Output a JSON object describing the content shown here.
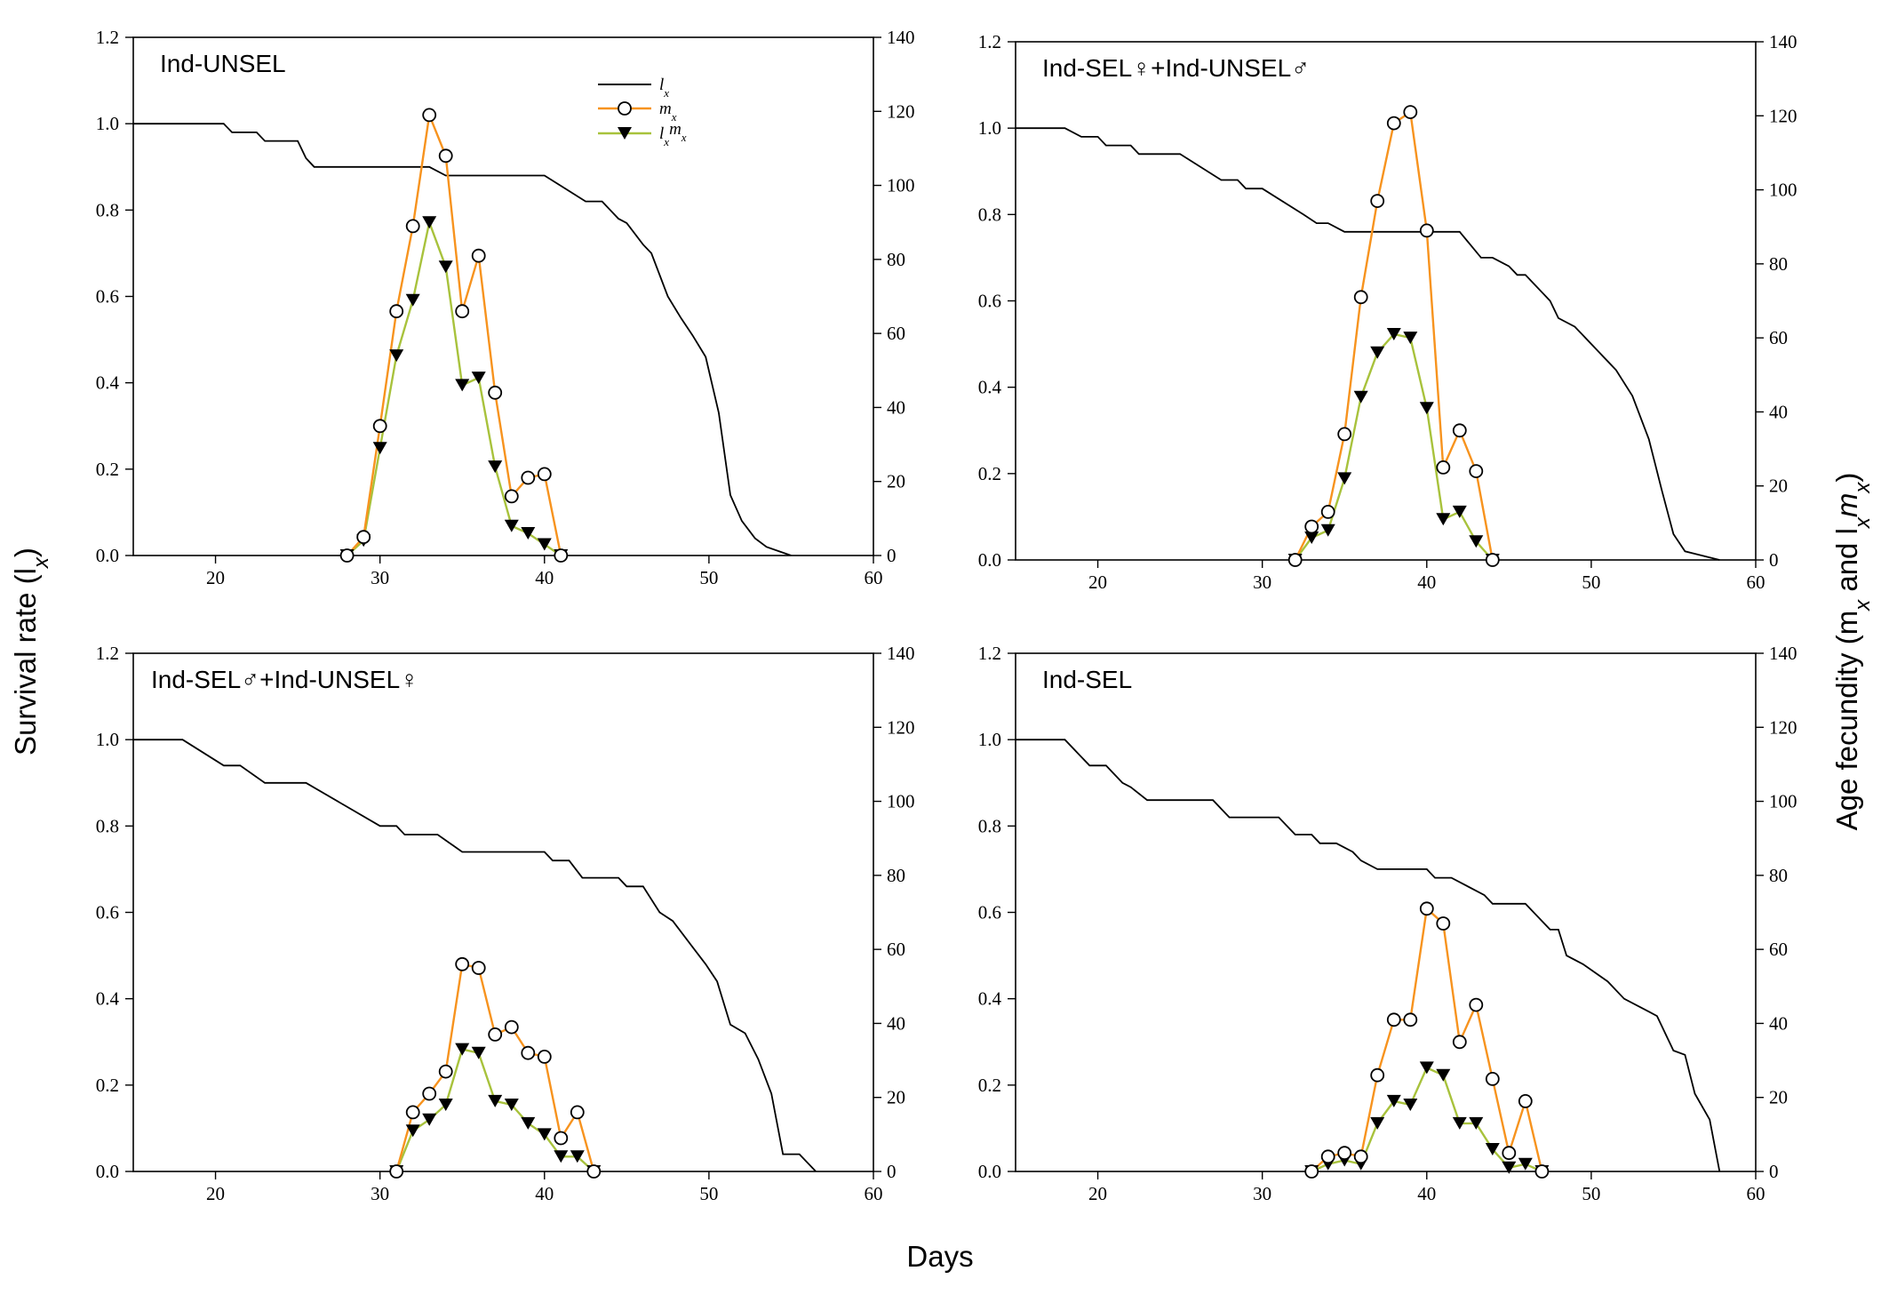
{
  "figure": {
    "ylabel_left": "Survival rate (l",
    "ylabel_left_sub": "x",
    "ylabel_left_close": ")",
    "ylabel_right": "Age fecundity (m",
    "ylabel_right_sub1": "x",
    "ylabel_right_mid": " and l",
    "ylabel_right_sub2": "x",
    "ylabel_right_m": "m",
    "ylabel_right_sub3": "x",
    "ylabel_right_close": ")",
    "xlabel": "Days"
  },
  "legend": {
    "lx_main": "l",
    "lx_sub": "x",
    "mx_main": "m",
    "mx_sub": "x",
    "lxmx_main1": "l",
    "lxmx_sub1": "x",
    "lxmx_main2": "m",
    "lxmx_sub2": "x"
  },
  "colors": {
    "lx": "#000000",
    "mx": "#f7931e",
    "lxmx": "#a8c23c"
  },
  "chart_data": [
    {
      "type": "line",
      "title": "Ind-UNSEL",
      "xlim": [
        15,
        60
      ],
      "ylim_left": [
        0,
        1.2
      ],
      "ylim_right": [
        0,
        140
      ],
      "xticks": [
        20,
        30,
        40,
        50,
        60
      ],
      "yticks_left": [
        "0.0",
        "0.2",
        "0.4",
        "0.6",
        "0.8",
        "1.0",
        "1.2"
      ],
      "yticks_right": [
        "0",
        "20",
        "40",
        "60",
        "80",
        "100",
        "120",
        "140"
      ],
      "lx": [
        [
          15,
          1.0
        ],
        [
          20.5,
          1.0
        ],
        [
          21,
          0.98
        ],
        [
          22.5,
          0.98
        ],
        [
          23,
          0.96
        ],
        [
          25,
          0.96
        ],
        [
          25.5,
          0.92
        ],
        [
          26,
          0.9
        ],
        [
          33,
          0.9
        ],
        [
          34,
          0.88
        ],
        [
          40,
          0.88
        ],
        [
          42.5,
          0.82
        ],
        [
          43.5,
          0.82
        ],
        [
          44.5,
          0.78
        ],
        [
          45,
          0.77
        ],
        [
          46,
          0.72
        ],
        [
          46.5,
          0.7
        ],
        [
          47.5,
          0.6
        ],
        [
          48.3,
          0.55
        ],
        [
          49,
          0.51
        ],
        [
          49.8,
          0.46
        ],
        [
          50.6,
          0.33
        ],
        [
          51.3,
          0.14
        ],
        [
          52,
          0.08
        ],
        [
          52.8,
          0.04
        ],
        [
          53.5,
          0.02
        ],
        [
          55,
          0.0
        ]
      ],
      "mx": [
        [
          28,
          0
        ],
        [
          29,
          5
        ],
        [
          30,
          35
        ],
        [
          31,
          66
        ],
        [
          32,
          89
        ],
        [
          33,
          119
        ],
        [
          34,
          108
        ],
        [
          35,
          66
        ],
        [
          36,
          81
        ],
        [
          37,
          44
        ],
        [
          38,
          16
        ],
        [
          39,
          21
        ],
        [
          40,
          22
        ],
        [
          41,
          0
        ]
      ],
      "lxmx": [
        [
          28,
          0
        ],
        [
          29,
          4
        ],
        [
          30,
          29
        ],
        [
          31,
          54
        ],
        [
          32,
          69
        ],
        [
          33,
          90
        ],
        [
          34,
          78
        ],
        [
          35,
          46
        ],
        [
          36,
          48
        ],
        [
          37,
          24
        ],
        [
          38,
          8
        ],
        [
          39,
          6
        ],
        [
          40,
          3
        ],
        [
          41,
          0
        ]
      ]
    },
    {
      "type": "line",
      "title": "Ind-SEL♀+Ind-UNSEL♂",
      "xlim": [
        15,
        60
      ],
      "ylim_left": [
        0,
        1.2
      ],
      "ylim_right": [
        0,
        140
      ],
      "xticks": [
        20,
        30,
        40,
        50,
        60
      ],
      "yticks_left": [
        "0.0",
        "0.2",
        "0.4",
        "0.6",
        "0.8",
        "1.0",
        "1.2"
      ],
      "yticks_right": [
        "0",
        "20",
        "40",
        "60",
        "80",
        "100",
        "120",
        "140"
      ],
      "lx": [
        [
          15,
          1.0
        ],
        [
          18,
          1.0
        ],
        [
          19,
          0.98
        ],
        [
          20,
          0.98
        ],
        [
          20.5,
          0.96
        ],
        [
          22,
          0.96
        ],
        [
          22.5,
          0.94
        ],
        [
          25,
          0.94
        ],
        [
          27.5,
          0.88
        ],
        [
          28.5,
          0.88
        ],
        [
          29,
          0.86
        ],
        [
          30,
          0.86
        ],
        [
          32.5,
          0.8
        ],
        [
          33.3,
          0.78
        ],
        [
          34,
          0.78
        ],
        [
          35,
          0.76
        ],
        [
          42,
          0.76
        ],
        [
          43.3,
          0.7
        ],
        [
          44,
          0.7
        ],
        [
          45,
          0.68
        ],
        [
          45.5,
          0.66
        ],
        [
          46,
          0.66
        ],
        [
          47.5,
          0.6
        ],
        [
          48,
          0.56
        ],
        [
          49,
          0.54
        ],
        [
          51.5,
          0.44
        ],
        [
          52.5,
          0.38
        ],
        [
          53.5,
          0.28
        ],
        [
          54.3,
          0.16
        ],
        [
          55,
          0.06
        ],
        [
          55.7,
          0.02
        ],
        [
          57.8,
          0.0
        ]
      ],
      "mx": [
        [
          32,
          0
        ],
        [
          33,
          9
        ],
        [
          34,
          13
        ],
        [
          35,
          34
        ],
        [
          36,
          71
        ],
        [
          37,
          97
        ],
        [
          38,
          118
        ],
        [
          39,
          121
        ],
        [
          40,
          89
        ],
        [
          41,
          25
        ],
        [
          42,
          35
        ],
        [
          43,
          24
        ],
        [
          44,
          0
        ]
      ],
      "lxmx": [
        [
          32,
          0
        ],
        [
          33,
          6
        ],
        [
          34,
          8
        ],
        [
          35,
          22
        ],
        [
          36,
          44
        ],
        [
          37,
          56
        ],
        [
          38,
          61
        ],
        [
          39,
          60
        ],
        [
          40,
          41
        ],
        [
          41,
          11
        ],
        [
          42,
          13
        ],
        [
          43,
          5
        ],
        [
          44,
          0
        ]
      ]
    },
    {
      "type": "line",
      "title": "Ind-SEL♂+Ind-UNSEL♀",
      "xlim": [
        15,
        60
      ],
      "ylim_left": [
        0,
        1.2
      ],
      "ylim_right": [
        0,
        140
      ],
      "xticks": [
        20,
        30,
        40,
        50,
        60
      ],
      "yticks_left": [
        "0.0",
        "0.2",
        "0.4",
        "0.6",
        "0.8",
        "1.0",
        "1.2"
      ],
      "yticks_right": [
        "0",
        "20",
        "40",
        "60",
        "80",
        "100",
        "120",
        "140"
      ],
      "lx": [
        [
          15,
          1.0
        ],
        [
          18,
          1.0
        ],
        [
          20.5,
          0.94
        ],
        [
          21.5,
          0.94
        ],
        [
          23,
          0.9
        ],
        [
          25.5,
          0.9
        ],
        [
          30,
          0.8
        ],
        [
          31,
          0.8
        ],
        [
          31.5,
          0.78
        ],
        [
          33.5,
          0.78
        ],
        [
          35,
          0.74
        ],
        [
          40,
          0.74
        ],
        [
          40.5,
          0.72
        ],
        [
          41.5,
          0.72
        ],
        [
          42.3,
          0.68
        ],
        [
          44.5,
          0.68
        ],
        [
          45,
          0.66
        ],
        [
          46,
          0.66
        ],
        [
          47,
          0.6
        ],
        [
          47.8,
          0.58
        ],
        [
          49,
          0.52
        ],
        [
          49.8,
          0.48
        ],
        [
          50.5,
          0.44
        ],
        [
          51.3,
          0.34
        ],
        [
          52.2,
          0.32
        ],
        [
          53,
          0.26
        ],
        [
          53.8,
          0.18
        ],
        [
          54.5,
          0.04
        ],
        [
          55.5,
          0.04
        ],
        [
          56.5,
          0.0
        ]
      ],
      "mx": [
        [
          31,
          0
        ],
        [
          32,
          16
        ],
        [
          33,
          21
        ],
        [
          34,
          27
        ],
        [
          35,
          56
        ],
        [
          36,
          55
        ],
        [
          37,
          37
        ],
        [
          38,
          39
        ],
        [
          39,
          32
        ],
        [
          40,
          31
        ],
        [
          41,
          9
        ],
        [
          42,
          16
        ],
        [
          43,
          0
        ]
      ],
      "lxmx": [
        [
          31,
          0
        ],
        [
          32,
          11
        ],
        [
          33,
          14
        ],
        [
          34,
          18
        ],
        [
          35,
          33
        ],
        [
          36,
          32
        ],
        [
          37,
          19
        ],
        [
          38,
          18
        ],
        [
          39,
          13
        ],
        [
          40,
          10
        ],
        [
          41,
          4
        ],
        [
          42,
          4
        ],
        [
          43,
          0
        ]
      ]
    },
    {
      "type": "line",
      "title": "Ind-SEL",
      "xlim": [
        15,
        60
      ],
      "ylim_left": [
        0,
        1.2
      ],
      "ylim_right": [
        0,
        140
      ],
      "xticks": [
        20,
        30,
        40,
        50,
        60
      ],
      "yticks_left": [
        "0.0",
        "0.2",
        "0.4",
        "0.6",
        "0.8",
        "1.0",
        "1.2"
      ],
      "yticks_right": [
        "0",
        "20",
        "40",
        "60",
        "80",
        "100",
        "120",
        "140"
      ],
      "lx": [
        [
          15,
          1.0
        ],
        [
          18,
          1.0
        ],
        [
          19,
          0.96
        ],
        [
          19.5,
          0.94
        ],
        [
          20.5,
          0.94
        ],
        [
          21.5,
          0.9
        ],
        [
          22,
          0.89
        ],
        [
          23,
          0.86
        ],
        [
          27,
          0.86
        ],
        [
          28,
          0.82
        ],
        [
          31,
          0.82
        ],
        [
          32,
          0.78
        ],
        [
          33,
          0.78
        ],
        [
          33.5,
          0.76
        ],
        [
          34.5,
          0.76
        ],
        [
          35.5,
          0.74
        ],
        [
          36,
          0.72
        ],
        [
          37,
          0.7
        ],
        [
          40,
          0.7
        ],
        [
          40.5,
          0.68
        ],
        [
          41.5,
          0.68
        ],
        [
          43.5,
          0.64
        ],
        [
          44,
          0.62
        ],
        [
          46,
          0.62
        ],
        [
          46.5,
          0.6
        ],
        [
          47.5,
          0.56
        ],
        [
          48,
          0.56
        ],
        [
          48.5,
          0.5
        ],
        [
          49.5,
          0.48
        ],
        [
          51,
          0.44
        ],
        [
          52,
          0.4
        ],
        [
          53.5,
          0.37
        ],
        [
          54,
          0.36
        ],
        [
          55,
          0.28
        ],
        [
          55.7,
          0.27
        ],
        [
          56.3,
          0.18
        ],
        [
          57.2,
          0.12
        ],
        [
          57.8,
          0.0
        ]
      ],
      "mx": [
        [
          33,
          0
        ],
        [
          34,
          4
        ],
        [
          35,
          5
        ],
        [
          36,
          4
        ],
        [
          37,
          26
        ],
        [
          38,
          41
        ],
        [
          39,
          41
        ],
        [
          40,
          71
        ],
        [
          41,
          67
        ],
        [
          42,
          35
        ],
        [
          43,
          45
        ],
        [
          44,
          25
        ],
        [
          45,
          5
        ],
        [
          46,
          19
        ],
        [
          47,
          0
        ]
      ],
      "lxmx": [
        [
          33,
          0
        ],
        [
          34,
          2
        ],
        [
          35,
          3
        ],
        [
          36,
          2
        ],
        [
          37,
          13
        ],
        [
          38,
          19
        ],
        [
          39,
          18
        ],
        [
          40,
          28
        ],
        [
          41,
          26
        ],
        [
          42,
          13
        ],
        [
          43,
          13
        ],
        [
          44,
          6
        ],
        [
          45,
          1
        ],
        [
          46,
          2
        ],
        [
          47,
          0
        ]
      ]
    }
  ]
}
